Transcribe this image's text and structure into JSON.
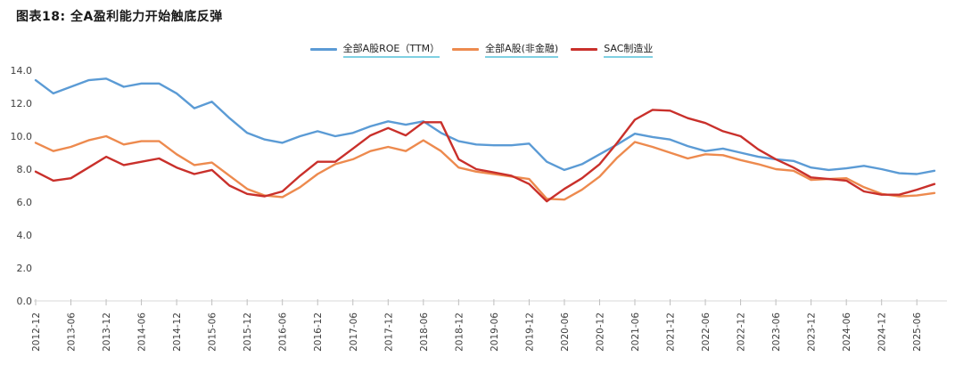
{
  "title": "图表18: 全A盈利能力开始触底反弹",
  "legend": [
    {
      "key": "roe-ttm",
      "label": "全部A股ROE（TTM）",
      "color": "#5B9BD5"
    },
    {
      "key": "non-financial",
      "label": "全部A股(非金融)",
      "color": "#ED8A4E"
    },
    {
      "key": "sac-manufacturing",
      "label": "SAC制造业",
      "color": "#C9302B"
    }
  ],
  "chart_data": {
    "type": "line",
    "title": "图表18: 全A盈利能力开始触底反弹",
    "xlabel": "",
    "ylabel": "",
    "ylim": [
      0,
      14
    ],
    "grid": false,
    "legend_position": "top-center",
    "y_tick_labels": [
      "0.0",
      "2.0",
      "4.0",
      "6.0",
      "8.0",
      "10.0",
      "12.0",
      "14.0"
    ],
    "y_tick_values": [
      0,
      2,
      4,
      6,
      8,
      10,
      12,
      14
    ],
    "x_tick_labels": [
      "2012-12",
      "2013-06",
      "2013-12",
      "2014-06",
      "2014-12",
      "2015-06",
      "2015-12",
      "2016-06",
      "2016-12",
      "2017-06",
      "2017-12",
      "2018-06",
      "2018-12",
      "2019-06",
      "2019-12",
      "2020-06",
      "2020-12",
      "2021-06",
      "2021-12",
      "2022-06",
      "2022-12",
      "2023-06",
      "2023-12",
      "2024-06",
      "2024-12",
      "2025-06"
    ],
    "x": [
      "2012-12",
      "2013-03",
      "2013-06",
      "2013-09",
      "2013-12",
      "2014-03",
      "2014-06",
      "2014-09",
      "2014-12",
      "2015-03",
      "2015-06",
      "2015-09",
      "2015-12",
      "2016-03",
      "2016-06",
      "2016-09",
      "2016-12",
      "2017-03",
      "2017-06",
      "2017-09",
      "2017-12",
      "2018-03",
      "2018-06",
      "2018-09",
      "2018-12",
      "2019-03",
      "2019-06",
      "2019-09",
      "2019-12",
      "2020-03",
      "2020-06",
      "2020-09",
      "2020-12",
      "2021-03",
      "2021-06",
      "2021-09",
      "2021-12",
      "2022-03",
      "2022-06",
      "2022-09",
      "2022-12",
      "2023-03",
      "2023-06",
      "2023-09",
      "2023-12",
      "2024-03",
      "2024-06",
      "2024-09",
      "2024-12",
      "2025-03",
      "2025-06",
      "2025-09"
    ],
    "series": [
      {
        "key": "roe-ttm",
        "name": "全部A股ROE（TTM）",
        "color": "#5B9BD5",
        "values": [
          13.4,
          12.6,
          13.0,
          13.4,
          13.5,
          13.0,
          13.2,
          13.2,
          12.6,
          11.7,
          12.1,
          11.1,
          10.2,
          9.8,
          9.6,
          10.0,
          10.3,
          10.0,
          10.2,
          10.6,
          10.9,
          10.7,
          10.9,
          10.2,
          9.7,
          9.5,
          9.45,
          9.45,
          9.55,
          8.45,
          7.95,
          8.3,
          8.9,
          9.5,
          10.15,
          9.95,
          9.8,
          9.4,
          9.1,
          9.25,
          9.0,
          8.75,
          8.6,
          8.5,
          8.1,
          7.95,
          8.05,
          8.2,
          8.0,
          7.75,
          7.7,
          7.9
        ]
      },
      {
        "key": "non-financial",
        "name": "全部A股(非金融)",
        "color": "#ED8A4E",
        "values": [
          9.6,
          9.1,
          9.35,
          9.75,
          10.0,
          9.5,
          9.7,
          9.7,
          8.9,
          8.25,
          8.4,
          7.6,
          6.8,
          6.4,
          6.3,
          6.9,
          7.7,
          8.3,
          8.6,
          9.1,
          9.35,
          9.1,
          9.75,
          9.1,
          8.1,
          7.85,
          7.7,
          7.55,
          7.4,
          6.2,
          6.15,
          6.75,
          7.55,
          8.7,
          9.65,
          9.35,
          9.0,
          8.65,
          8.9,
          8.85,
          8.55,
          8.3,
          8.0,
          7.9,
          7.35,
          7.4,
          7.45,
          6.9,
          6.5,
          6.35,
          6.4,
          6.55
        ]
      },
      {
        "key": "sac-manufacturing",
        "name": "SAC制造业",
        "color": "#C9302B",
        "values": [
          7.85,
          7.3,
          7.45,
          8.1,
          8.75,
          8.25,
          8.45,
          8.65,
          8.1,
          7.7,
          7.95,
          7.0,
          6.5,
          6.35,
          6.65,
          7.6,
          8.45,
          8.45,
          9.25,
          10.05,
          10.5,
          10.05,
          10.85,
          10.85,
          8.6,
          8.0,
          7.8,
          7.6,
          7.1,
          6.05,
          6.8,
          7.45,
          8.3,
          9.6,
          11.0,
          11.6,
          11.55,
          11.1,
          10.8,
          10.3,
          10.0,
          9.2,
          8.6,
          8.1,
          7.5,
          7.4,
          7.3,
          6.65,
          6.45,
          6.45,
          6.75,
          7.1
        ]
      }
    ]
  }
}
